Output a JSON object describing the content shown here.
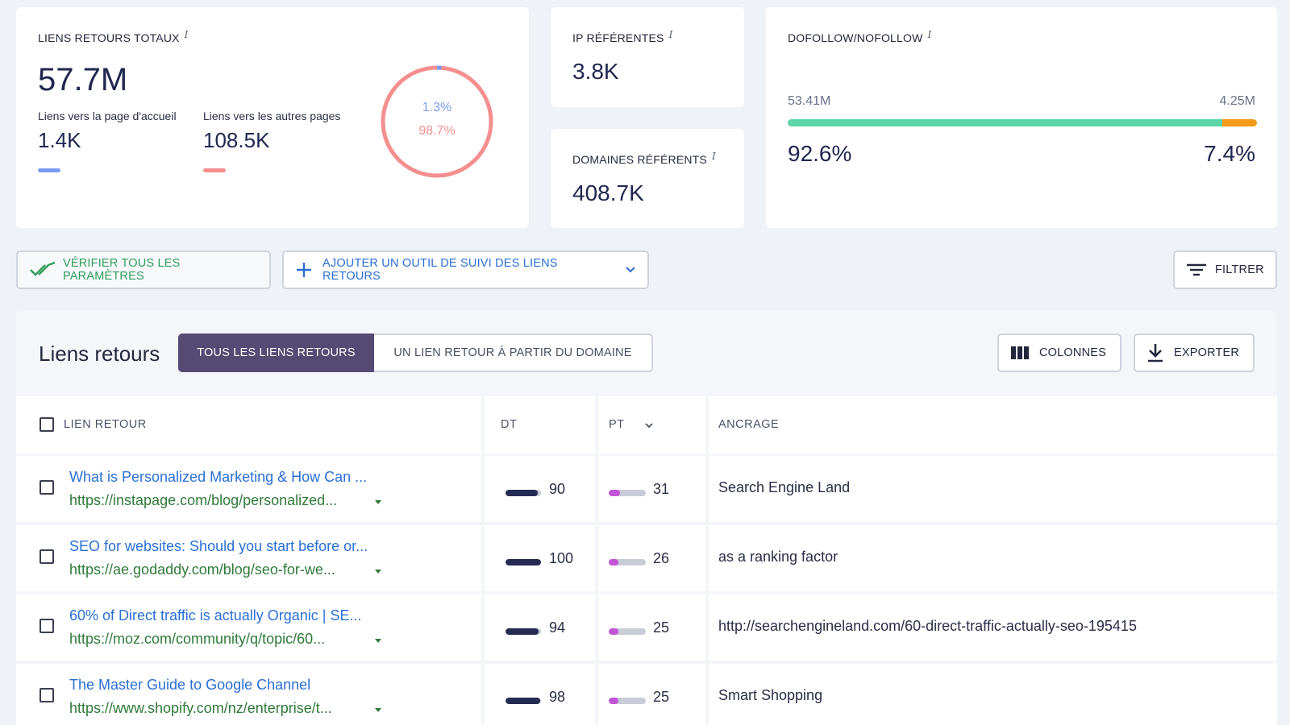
{
  "cards": {
    "total_backlinks": {
      "title": "LIENS RETOURS TOTAUX",
      "info": "i",
      "value": "57.7M",
      "home_label": "Liens vers la page d'accueil",
      "home_value": "1.4K",
      "other_label": "Liens vers les autres pages",
      "other_value": "108.5K",
      "donut_home_pct_label": "1.3%",
      "donut_other_pct_label": "98.7%",
      "donut_home_fraction": 0.013,
      "home_color": "#7a9cf0",
      "other_color": "#f58f8f"
    },
    "referring_ips": {
      "title": "IP RÉFÉRENTES",
      "info": "i",
      "value": "3.8K"
    },
    "referring_domains": {
      "title": "DOMAINES RÉFÉRENTS",
      "info": "i",
      "value": "408.7K"
    },
    "dofollow": {
      "title": "DOFOLLOW/NOFOLLOW",
      "info": "i",
      "dofollow_count": "53.41M",
      "nofollow_count": "4.25M",
      "dofollow_pct": "92.6%",
      "nofollow_pct": "7.4%",
      "dofollow_fraction": 0.926,
      "dofollow_color": "#5cd6a9",
      "nofollow_color": "#f59a1a"
    }
  },
  "toolbar": {
    "verify_label": "VÉRIFIER TOUS LES PARAMÈTRES",
    "add_tracker_label": "AJOUTER UN OUTIL DE SUIVI DES LIENS RETOURS",
    "filter_label": "FILTRER"
  },
  "table": {
    "title": "Liens retours",
    "tabs": [
      "TOUS LES LIENS RETOURS",
      "UN LIEN RETOUR À PARTIR DU DOMAINE"
    ],
    "columns_label": "COLONNES",
    "export_label": "EXPORTER",
    "headers": {
      "backlink": "LIEN RETOUR",
      "dt": "DT",
      "pt": "PT",
      "anchor": "ANCRAGE"
    },
    "rows": [
      {
        "title": "What is Personalized Marketing & How Can ...",
        "url": "https://instapage.com/blog/personalized...",
        "dt": 90,
        "pt": 31,
        "anchor": "Search Engine Land"
      },
      {
        "title": "SEO for websites: Should you start before or...",
        "url": "https://ae.godaddy.com/blog/seo-for-we...",
        "dt": 100,
        "pt": 26,
        "anchor": "as a ranking factor"
      },
      {
        "title": "60% of Direct traffic is actually Organic | SE...",
        "url": "https://moz.com/community/q/topic/60...",
        "dt": 94,
        "pt": 25,
        "anchor": "http://searchengineland.com/60-direct-traffic-actually-seo-195415"
      },
      {
        "title": "The Master Guide to Google Channel",
        "url": "https://www.shopify.com/nz/enterprise/t...",
        "dt": 98,
        "pt": 25,
        "anchor": "Smart Shopping"
      }
    ],
    "dt_color": "#242a52",
    "pt_color": "#c353d6"
  }
}
